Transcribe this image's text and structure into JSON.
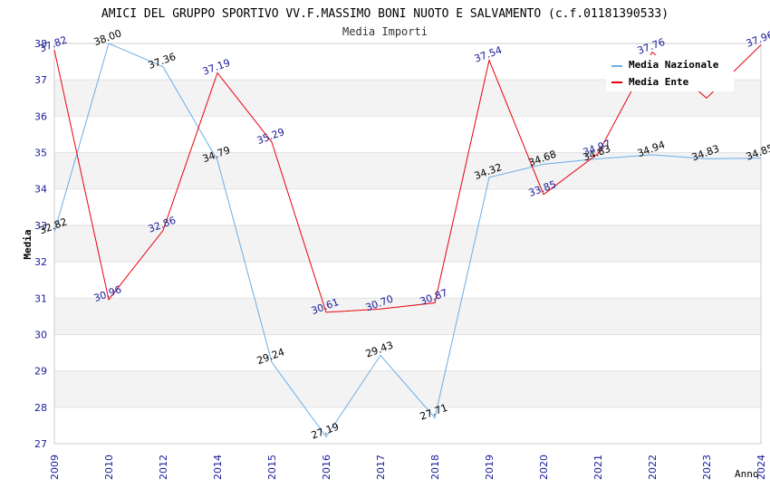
{
  "chart_data": {
    "type": "line",
    "title": "AMICI DEL GRUPPO SPORTIVO VV.F.MASSIMO BONI NUOTO E SALVAMENTO (c.f.01181390533)",
    "subtitle": "Media Importi",
    "xlabel": "Anno",
    "ylabel": "Media",
    "ylim": [
      27,
      38
    ],
    "yticks": [
      "27",
      "28",
      "29",
      "30",
      "31",
      "32",
      "33",
      "34",
      "35",
      "36",
      "37",
      "38"
    ],
    "categories": [
      "2009",
      "2010",
      "2012",
      "2014",
      "2015",
      "2016",
      "2017",
      "2018",
      "2019",
      "2020",
      "2021",
      "2022",
      "2023",
      "2024"
    ],
    "grid": true,
    "legend": "top-right",
    "series": [
      {
        "name": "Media Nazionale",
        "color": "#6aaee8",
        "label_color": "#000000",
        "values": [
          32.82,
          38.0,
          37.36,
          34.79,
          29.24,
          27.19,
          29.43,
          27.71,
          34.32,
          34.68,
          34.83,
          34.94,
          34.83,
          34.85
        ],
        "labels": [
          "32.82",
          "38.00",
          "37.36",
          "34.79",
          "29.24",
          "27.19",
          "29.43",
          "27.71",
          "34.32",
          "34.68",
          "34.83",
          "34.94",
          "34.83",
          "34.85"
        ]
      },
      {
        "name": "Media Ente",
        "color": "#e8000b",
        "label_color": "#1a1a99",
        "values": [
          37.82,
          30.96,
          32.86,
          37.19,
          35.29,
          30.61,
          30.7,
          30.87,
          37.54,
          33.85,
          34.97,
          37.76,
          36.5,
          37.96
        ],
        "labels": [
          "37.82",
          "30.96",
          "32.86",
          "37.19",
          "35.29",
          "30.61",
          "30.70",
          "30.87",
          "37.54",
          "33.85",
          "34.97",
          "37.76",
          "",
          "37.96"
        ]
      }
    ]
  }
}
